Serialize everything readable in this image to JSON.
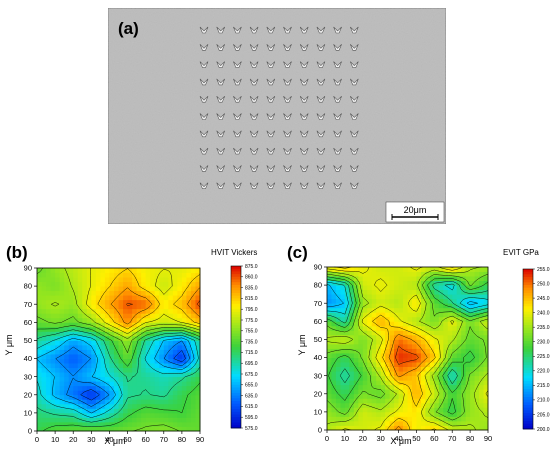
{
  "figure": {
    "panel_a": {
      "label": "(a)",
      "scale_bar": "20μm"
    },
    "panel_b": {
      "label": "(b)"
    },
    "panel_c": {
      "label": "(c)"
    }
  },
  "chart_data": [
    {
      "type": "heatmap",
      "panel": "(b)",
      "title": "HVIT Vickers",
      "xlabel": "X μm",
      "ylabel": "Y μm",
      "xlim": [
        0,
        90
      ],
      "ylim": [
        0,
        90
      ],
      "x_ticks": [
        "0",
        "10",
        "20",
        "30",
        "40",
        "50",
        "60",
        "70",
        "80",
        "90"
      ],
      "y_ticks": [
        "0",
        "10",
        "20",
        "30",
        "40",
        "50",
        "60",
        "70",
        "80",
        "90"
      ],
      "colorbar_ticks": [
        "875.0",
        "860.0",
        "835.0",
        "815.0",
        "795.0",
        "775.0",
        "755.0",
        "735.0",
        "715.0",
        "695.0",
        "675.0",
        "655.0",
        "635.0",
        "615.0",
        "595.0",
        "575.0"
      ],
      "grid_x": [
        0,
        10,
        20,
        30,
        40,
        50,
        60,
        70,
        80,
        90
      ],
      "grid_y": [
        0,
        10,
        20,
        30,
        40,
        50,
        60,
        70,
        80,
        90
      ],
      "z": [
        [
          720,
          735,
          740,
          745,
          740,
          745,
          750,
          755,
          745,
          740
        ],
        [
          710,
          700,
          695,
          660,
          690,
          720,
          735,
          730,
          725,
          740
        ],
        [
          690,
          655,
          630,
          600,
          640,
          700,
          705,
          700,
          720,
          735
        ],
        [
          680,
          660,
          640,
          660,
          680,
          705,
          700,
          690,
          700,
          720
        ],
        [
          660,
          640,
          620,
          640,
          700,
          740,
          680,
          640,
          600,
          690
        ],
        [
          700,
          680,
          650,
          670,
          720,
          760,
          700,
          660,
          640,
          700
        ],
        [
          740,
          750,
          740,
          760,
          800,
          840,
          790,
          780,
          790,
          820
        ],
        [
          760,
          770,
          760,
          800,
          830,
          855,
          850,
          800,
          820,
          860
        ],
        [
          760,
          750,
          770,
          790,
          810,
          830,
          800,
          780,
          800,
          830
        ],
        [
          740,
          760,
          775,
          790,
          800,
          810,
          795,
          790,
          790,
          800
        ]
      ],
      "zlim": [
        575,
        875
      ]
    },
    {
      "type": "heatmap",
      "panel": "(c)",
      "title": "EVIT GPa",
      "xlabel": "X μm",
      "ylabel": "Y μm",
      "xlim": [
        0,
        90
      ],
      "ylim": [
        0,
        90
      ],
      "x_ticks": [
        "0",
        "10",
        "20",
        "30",
        "40",
        "50",
        "60",
        "70",
        "80",
        "90"
      ],
      "y_ticks": [
        "0",
        "10",
        "20",
        "30",
        "40",
        "50",
        "60",
        "70",
        "80",
        "90"
      ],
      "colorbar_ticks": [
        "255.0",
        "250.0",
        "245.0",
        "240.0",
        "235.0",
        "230.0",
        "225.0",
        "220.0",
        "215.0",
        "210.0",
        "205.0",
        "200.0"
      ],
      "grid_x": [
        0,
        10,
        20,
        30,
        40,
        50,
        60,
        70,
        80,
        90
      ],
      "grid_y": [
        0,
        10,
        20,
        30,
        40,
        50,
        60,
        70,
        80,
        90
      ],
      "z": [
        [
          236,
          240,
          238,
          240,
          249,
          240,
          244,
          238,
          236,
          234
        ],
        [
          234,
          230,
          238,
          236,
          240,
          242,
          232,
          226,
          234,
          236
        ],
        [
          230,
          226,
          232,
          230,
          236,
          246,
          238,
          228,
          234,
          240
        ],
        [
          228,
          222,
          228,
          236,
          248,
          244,
          234,
          220,
          232,
          236
        ],
        [
          230,
          226,
          232,
          242,
          253,
          252,
          244,
          230,
          226,
          232
        ],
        [
          236,
          238,
          232,
          238,
          250,
          246,
          240,
          236,
          230,
          232
        ],
        [
          230,
          222,
          240,
          246,
          240,
          236,
          232,
          240,
          232,
          238
        ],
        [
          212,
          216,
          234,
          238,
          236,
          242,
          230,
          224,
          214,
          218
        ],
        [
          215,
          220,
          238,
          240,
          238,
          236,
          222,
          218,
          232,
          226
        ],
        [
          242,
          245,
          240,
          238,
          238,
          240,
          238,
          244,
          236,
          235
        ]
      ],
      "zlim": [
        200,
        255
      ]
    }
  ]
}
